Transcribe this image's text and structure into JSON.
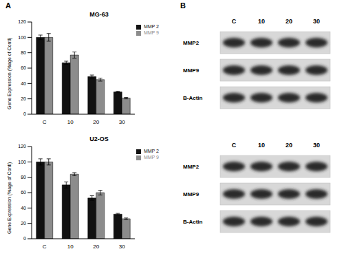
{
  "chart_data": [
    {
      "type": "bar",
      "title": "MG-63",
      "y_label": "Gene Expression (%age of Contl)",
      "categories": [
        "C",
        "10",
        "20",
        "30"
      ],
      "series": [
        {
          "name": "MMP 2",
          "color": "#111111",
          "values": [
            100,
            67,
            49,
            29
          ],
          "errors": [
            3,
            2,
            2,
            1
          ]
        },
        {
          "name": "MMP 9",
          "color": "#8c8c8c",
          "values": [
            100,
            77,
            45,
            21
          ],
          "errors": [
            5,
            4,
            2,
            1
          ]
        }
      ],
      "ylim": [
        0,
        120
      ],
      "yticks": [
        0,
        20,
        40,
        60,
        80,
        100,
        120
      ],
      "legend": "upper right",
      "grid": false
    },
    {
      "type": "bar",
      "title": "U2-OS",
      "y_label": "Gene Expression (%age of Contl)",
      "categories": [
        "C",
        "10",
        "20",
        "30"
      ],
      "series": [
        {
          "name": "MMP 2",
          "color": "#111111",
          "values": [
            100,
            70,
            53,
            32
          ],
          "errors": [
            4,
            4,
            3,
            1
          ]
        },
        {
          "name": "MMP 9",
          "color": "#8c8c8c",
          "values": [
            100,
            84,
            60,
            26
          ],
          "errors": [
            4,
            2,
            3,
            1
          ]
        }
      ],
      "ylim": [
        0,
        120
      ],
      "yticks": [
        0,
        20,
        40,
        60,
        80,
        100,
        120
      ],
      "legend": "upper right",
      "grid": false
    }
  ],
  "panel_labels": [
    "A",
    "B"
  ],
  "blots": [
    {
      "lanes": [
        "C",
        "10",
        "20",
        "30"
      ],
      "rows": [
        "MMP2",
        "MMP9",
        "B-Actin"
      ]
    },
    {
      "lanes": [
        "C",
        "10",
        "20",
        "30"
      ],
      "rows": [
        "MMP2",
        "MMP9",
        "B-Actin"
      ]
    }
  ]
}
